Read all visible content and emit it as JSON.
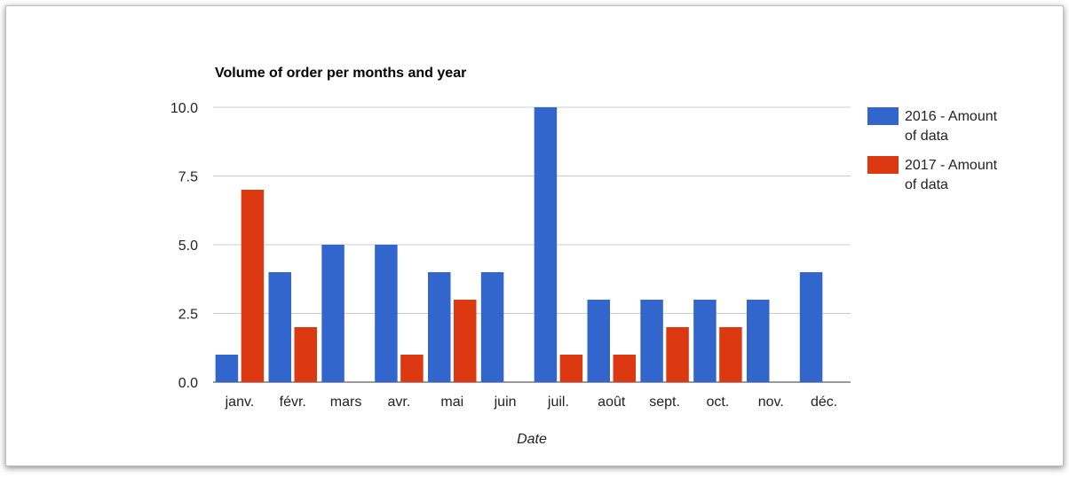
{
  "chart_data": {
    "type": "bar",
    "title": "Volume of order per months and year",
    "xlabel": "Date",
    "ylabel": "",
    "ylim": [
      0,
      10
    ],
    "yticks": [
      "0.0",
      "2.5",
      "5.0",
      "7.5",
      "10.0"
    ],
    "grid": true,
    "legend_position": "right",
    "categories": [
      "janv.",
      "févr.",
      "mars",
      "avr.",
      "mai",
      "juin",
      "juil.",
      "août",
      "sept.",
      "oct.",
      "nov.",
      "déc."
    ],
    "series": [
      {
        "name": "2016 - Amount of data",
        "legend_lines": [
          "2016 - Amount",
          "of data"
        ],
        "color": "#3366cc",
        "values": [
          1,
          4,
          5,
          5,
          4,
          4,
          10,
          3,
          3,
          3,
          3,
          4
        ]
      },
      {
        "name": "2017 - Amount of data",
        "legend_lines": [
          "2017 - Amount",
          "of data"
        ],
        "color": "#dc3912",
        "values": [
          7,
          2,
          0,
          1,
          3,
          0,
          1,
          1,
          2,
          2,
          0,
          0
        ]
      }
    ]
  }
}
